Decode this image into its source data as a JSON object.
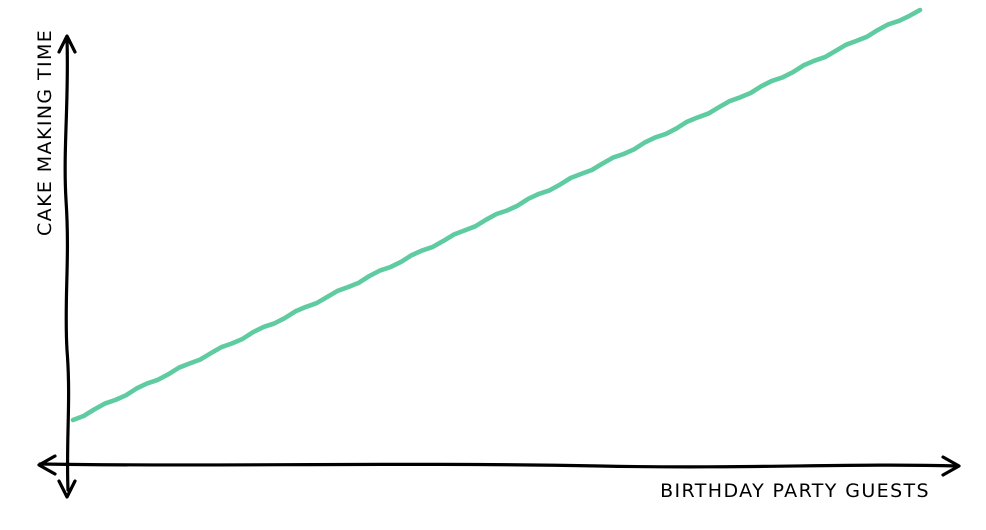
{
  "chart_data": {
    "type": "line",
    "title": "",
    "xlabel": "BIRTHDAY PARTY GUESTS",
    "ylabel": "CAKE MAKING TIME",
    "x": [
      0,
      10,
      20,
      30,
      40,
      50,
      60,
      70,
      80,
      90,
      100
    ],
    "series": [
      {
        "values": [
          10,
          19,
          28,
          37,
          46,
          55,
          64,
          73,
          82,
          91,
          100
        ],
        "color": "#5ecba1"
      }
    ],
    "xlim": [
      0,
      100
    ],
    "ylim": [
      0,
      100
    ],
    "grid": false,
    "axis_color": "#000000",
    "style": "xkcd"
  }
}
